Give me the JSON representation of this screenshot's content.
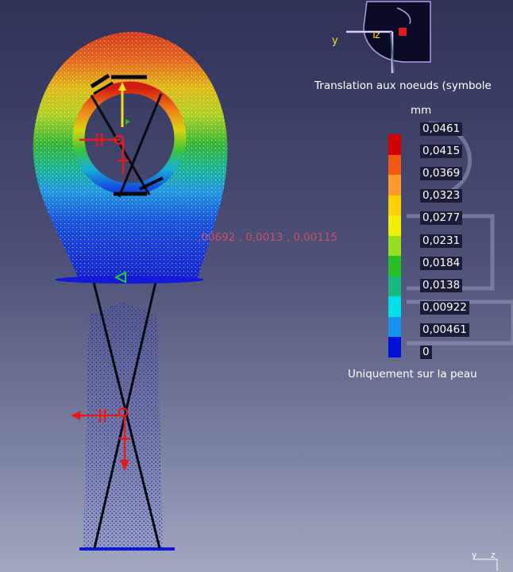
{
  "legend": {
    "title": "Translation aux noeuds (symbole",
    "unit": "mm",
    "footer": "Uniquement sur la peau",
    "colors": [
      "#d40000",
      "#f05a10",
      "#ff9a2a",
      "#ffd000",
      "#f0f000",
      "#96e020",
      "#28c028",
      "#18b880",
      "#00e0e8",
      "#1890f0",
      "#0010d8"
    ],
    "values": [
      "0,0461",
      "0,0415",
      "0,0369",
      "0,0323",
      "0,0277",
      "0,0231",
      "0,0184",
      "0,0138",
      "0,00922",
      "0,00461",
      "0"
    ]
  },
  "probe": {
    "readout": ",00692 , 0,0013 , 0,00115"
  },
  "compass": {
    "axis_y": "y",
    "axis_z": "z"
  },
  "triad": {
    "axis_y": "y",
    "axis_z": "z"
  },
  "colors": {
    "background_top": "#2f3157",
    "background_bottom": "#a3a8c0",
    "force_arrow": "#e41b1b",
    "label_bg": "#1a1d38"
  }
}
